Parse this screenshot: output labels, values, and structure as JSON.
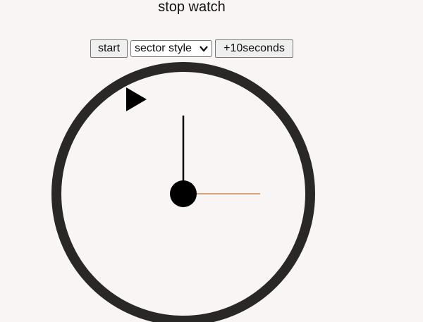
{
  "app": {
    "title": "stop watch"
  },
  "controls": {
    "start_label": "start",
    "style_select": {
      "selected": "sector style"
    },
    "add_time_label": "+10seconds"
  },
  "clock": {
    "face_color": "#f8f5f4",
    "rim_color": "#2a2827",
    "main_hand_color": "#000000",
    "second_hand_color": "#d8a57b",
    "marker_icon": "play-triangle-icon"
  }
}
